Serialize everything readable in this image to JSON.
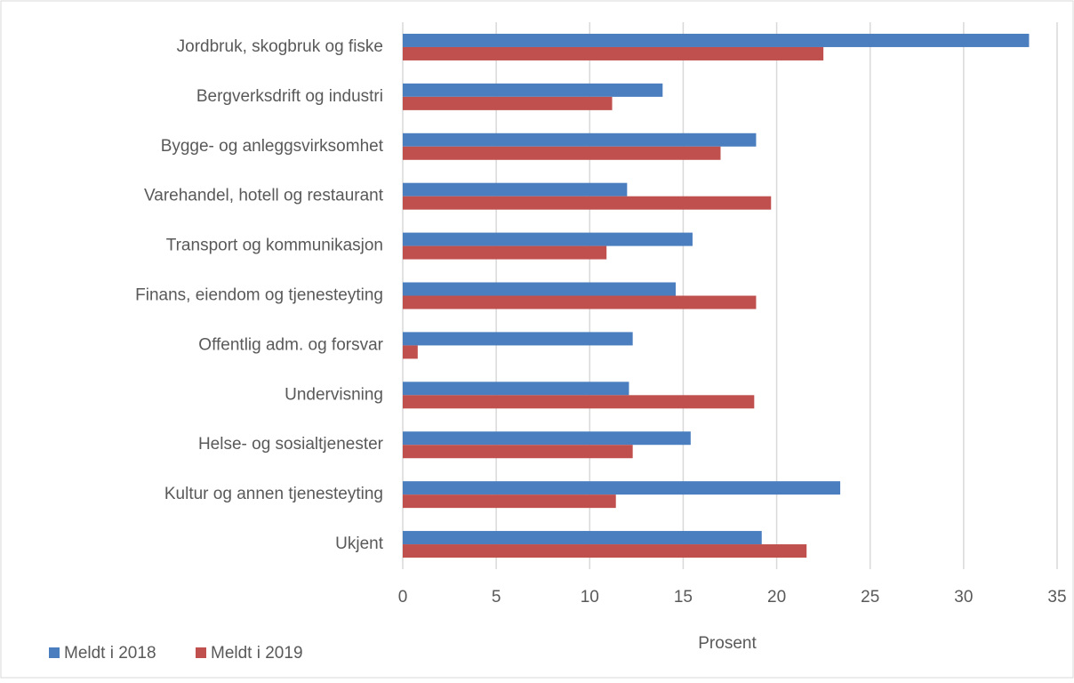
{
  "chart_data": {
    "type": "hbar",
    "x_label": "Prosent",
    "categories": [
      "Jordbruk, skogbruk og fiske",
      "Bergverksdrift og industri",
      "Bygge- og anleggsvirksomhet",
      "Varehandel, hotell og restaurant",
      "Transport og kommunikasjon",
      "Finans, eiendom og tjenesteyting",
      "Offentlig adm. og forsvar",
      "Undervisning",
      "Helse- og sosialtjenester",
      "Kultur og annen tjenesteyting",
      "Ukjent"
    ],
    "series": [
      {
        "name": "Meldt i 2018",
        "color": "#4a7ebf",
        "values": [
          33.5,
          13.9,
          18.9,
          12.0,
          15.5,
          14.6,
          12.3,
          12.1,
          15.4,
          23.4,
          19.2
        ]
      },
      {
        "name": "Meldt i 2019",
        "color": "#c0504d",
        "values": [
          22.5,
          11.2,
          17.0,
          19.7,
          10.9,
          18.9,
          0.8,
          18.8,
          12.3,
          11.4,
          21.6
        ]
      }
    ],
    "xlim": [
      0,
      35
    ],
    "xticks": [
      0,
      5,
      10,
      15,
      20,
      25,
      30,
      35
    ],
    "grid": true,
    "legend": "bottom-left"
  }
}
